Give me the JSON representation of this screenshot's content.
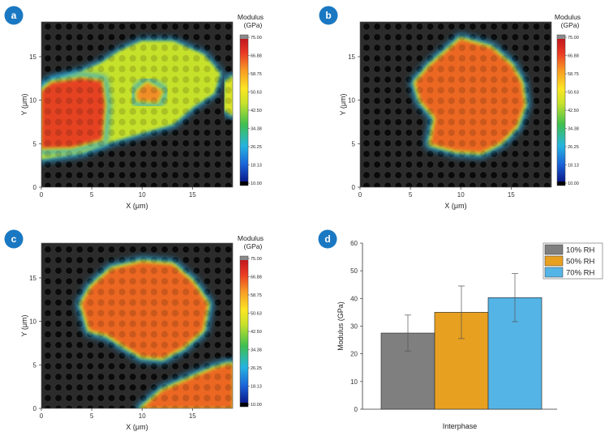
{
  "colors": {
    "badge": "#1a78c2",
    "bar_10": "#7f7f7f",
    "bar_50": "#e8a020",
    "bar_70": "#55b4e6",
    "grid_bg": "#2b2b2b",
    "grid_dot": "#0c0c0c"
  },
  "chart_data": [
    {
      "type": "heatmap",
      "panel_label": "a",
      "xlabel": "X (μm)",
      "ylabel": "Y (μm)",
      "xticks": [
        "0",
        "5",
        "10",
        "15"
      ],
      "yticks": [
        "0",
        "5",
        "10",
        "15"
      ],
      "xlim": [
        0,
        19
      ],
      "ylim": [
        0,
        19
      ],
      "colorbar": {
        "title_line1": "Modulus",
        "title_line2": "(GPa)",
        "ticks": [
          "75.00",
          "66.88",
          "58.75",
          "50.63",
          "42.50",
          "34.38",
          "26.25",
          "18.13",
          "10.00"
        ]
      },
      "regions": [
        {
          "level": 0.55,
          "points": [
            [
              0,
              3.5
            ],
            [
              4,
              4.2
            ],
            [
              7,
              5.5
            ],
            [
              10,
              6.5
            ],
            [
              13,
              7.5
            ],
            [
              15,
              9.5
            ],
            [
              17,
              11
            ],
            [
              17.5,
              13
            ],
            [
              16,
              15
            ],
            [
              13,
              16.5
            ],
            [
              10,
              16.5
            ],
            [
              8,
              15.5
            ],
            [
              6,
              14
            ],
            [
              4,
              13
            ],
            [
              1,
              12
            ],
            [
              0,
              11
            ]
          ]
        },
        {
          "level": 0.9,
          "points": [
            [
              0,
              4.5
            ],
            [
              3,
              4.6
            ],
            [
              6,
              5.5
            ],
            [
              6.3,
              9.5
            ],
            [
              6,
              12.2
            ],
            [
              4,
              12.5
            ],
            [
              1,
              12
            ],
            [
              0,
              11
            ]
          ]
        },
        {
          "level": 0.8,
          "points": [
            [
              9.5,
              10
            ],
            [
              11.5,
              9.8
            ],
            [
              12,
              11
            ],
            [
              10.5,
              12
            ],
            [
              9.5,
              11
            ]
          ]
        },
        {
          "level": 0.6,
          "points": [
            [
              18.3,
              9
            ],
            [
              19,
              8.5
            ],
            [
              19,
              12.5
            ],
            [
              18.4,
              12
            ]
          ]
        }
      ]
    },
    {
      "type": "heatmap",
      "panel_label": "b",
      "xlabel": "X (μm)",
      "ylabel": "Y (μm)",
      "xticks": [
        "0",
        "5",
        "10",
        "15"
      ],
      "yticks": [
        "0",
        "5",
        "10",
        "15"
      ],
      "xlim": [
        0,
        19
      ],
      "ylim": [
        0,
        19
      ],
      "colorbar": {
        "title_line1": "Modulus",
        "title_line2": "(GPa)",
        "ticks": [
          "75.00",
          "66.88",
          "58.75",
          "50.63",
          "42.50",
          "34.38",
          "26.25",
          "18.13",
          "10.00"
        ]
      },
      "regions": [
        {
          "level": 0.85,
          "points": [
            [
              7,
              5
            ],
            [
              9.5,
              4.2
            ],
            [
              12,
              4
            ],
            [
              14,
              5.2
            ],
            [
              15.5,
              7
            ],
            [
              16.3,
              9.5
            ],
            [
              16,
              12
            ],
            [
              15,
              14
            ],
            [
              13,
              16
            ],
            [
              10,
              17
            ],
            [
              8.5,
              15.5
            ],
            [
              7,
              14
            ],
            [
              5.5,
              12
            ],
            [
              6,
              10
            ],
            [
              7.5,
              8
            ]
          ]
        }
      ]
    },
    {
      "type": "heatmap",
      "panel_label": "c",
      "xlabel": "X (μm)",
      "ylabel": "Y (μm)",
      "xticks": [
        "0",
        "5",
        "10",
        "15"
      ],
      "yticks": [
        "0",
        "5",
        "10",
        "15"
      ],
      "xlim": [
        0,
        19
      ],
      "ylim": [
        0,
        19
      ],
      "colorbar": {
        "title_line1": "Modulus",
        "title_line2": "(GPa)",
        "ticks": [
          "75.00",
          "66.88",
          "58.75",
          "50.63",
          "42.50",
          "34.38",
          "26.25",
          "18.13",
          "10.00"
        ]
      },
      "regions": [
        {
          "level": 0.85,
          "points": [
            [
              4,
              12
            ],
            [
              5,
              14
            ],
            [
              7,
              16
            ],
            [
              10,
              16.8
            ],
            [
              13,
              16.5
            ],
            [
              15,
              14.5
            ],
            [
              16.5,
              12
            ],
            [
              16,
              9
            ],
            [
              14,
              7
            ],
            [
              12,
              5.8
            ],
            [
              10,
              6
            ],
            [
              8.5,
              7
            ],
            [
              6.5,
              8.5
            ],
            [
              4.8,
              9
            ]
          ]
        },
        {
          "level": 0.85,
          "points": [
            [
              10,
              0
            ],
            [
              12,
              2
            ],
            [
              15,
              3.5
            ],
            [
              17,
              4.5
            ],
            [
              18.5,
              5
            ],
            [
              19,
              5
            ],
            [
              19,
              0
            ]
          ]
        }
      ]
    },
    {
      "type": "bar",
      "panel_label": "d",
      "title": "",
      "xlabel": "Interphase",
      "ylabel": "Modulus (GPa)",
      "ylim": [
        0,
        60
      ],
      "yticks": [
        "0",
        "10",
        "20",
        "30",
        "40",
        "50",
        "60"
      ],
      "categories": [
        "Interphase"
      ],
      "series": [
        {
          "name": "10% RH",
          "values": [
            27.5
          ],
          "error": [
            6.5
          ]
        },
        {
          "name": "50% RH",
          "values": [
            35
          ],
          "error": [
            9.5
          ]
        },
        {
          "name": "70% RH",
          "values": [
            40.3
          ],
          "error": [
            8.7
          ]
        }
      ],
      "legend_position": "top-right"
    }
  ]
}
